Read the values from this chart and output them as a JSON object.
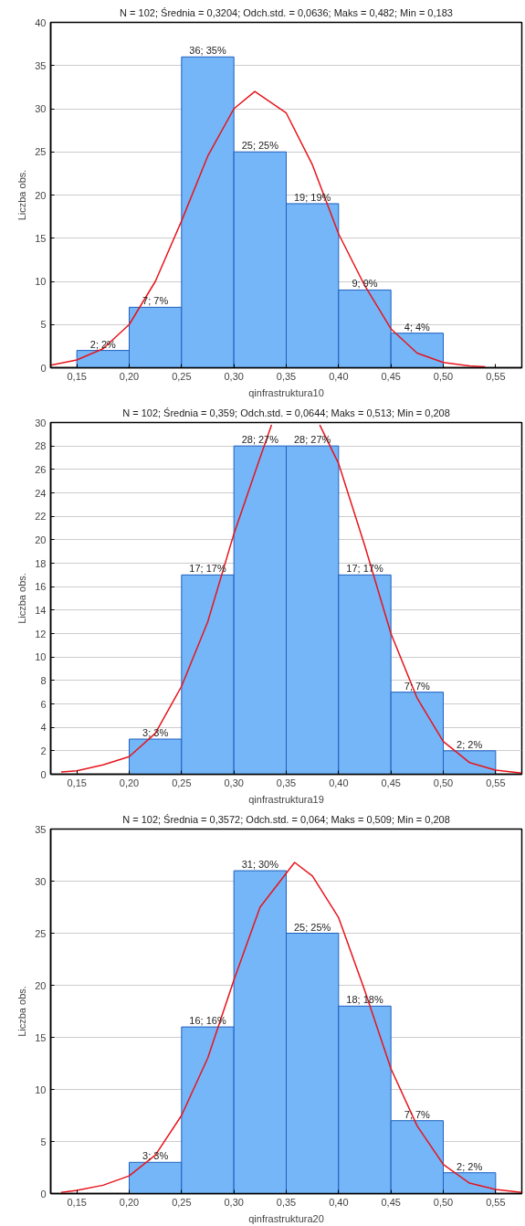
{
  "chart_data": [
    {
      "type": "histogram",
      "title": "N = 102; Średnia = 0,3204; Odch.std. = 0,0636; Maks = 0,482; Min = 0,183",
      "xlabel": "qinfrastruktura10",
      "ylabel": "Liczba obs.",
      "bins": [
        0.15,
        0.2,
        0.25,
        0.3,
        0.35,
        0.4,
        0.45,
        0.5
      ],
      "values": [
        2,
        7,
        36,
        25,
        19,
        9,
        4
      ],
      "value_labels": [
        "2; 2%",
        "7; 7%",
        "36; 35%",
        "25; 25%",
        "19; 19%",
        "9; 9%",
        "4; 4%"
      ],
      "color": "#74b6f7",
      "xlim": [
        0.125,
        0.575
      ],
      "xticks": [
        {
          "value": 0.15,
          "label": "0,15"
        },
        {
          "value": 0.2,
          "label": "0,20"
        },
        {
          "value": 0.25,
          "label": "0,25"
        },
        {
          "value": 0.3,
          "label": "0,30"
        },
        {
          "value": 0.35,
          "label": "0,35"
        },
        {
          "value": 0.4,
          "label": "0,40"
        },
        {
          "value": 0.45,
          "label": "0,45"
        },
        {
          "value": 0.5,
          "label": "0,50"
        },
        {
          "value": 0.55,
          "label": "0,55"
        }
      ],
      "ylim": [
        0,
        40
      ],
      "yticks": [
        0,
        5,
        10,
        15,
        20,
        25,
        30,
        35,
        40
      ],
      "grid": "y",
      "series": [
        {
          "type": "line",
          "color": "#e8141c",
          "x": [
            0.125,
            0.15,
            0.175,
            0.2,
            0.225,
            0.25,
            0.275,
            0.3,
            0.32,
            0.35,
            0.375,
            0.4,
            0.425,
            0.45,
            0.475,
            0.5,
            0.525,
            0.54
          ],
          "values": [
            0.3,
            0.9,
            2.2,
            5,
            10,
            17,
            24.5,
            30,
            32,
            29.5,
            23.5,
            15.5,
            9.5,
            4.5,
            1.7,
            0.6,
            0.2,
            0.1
          ]
        }
      ]
    },
    {
      "type": "histogram",
      "title": "N = 102; Średnia = 0,359; Odch.std. = 0,0644; Maks = 0,513; Min = 0,208",
      "xlabel": "qinfrastruktura19",
      "ylabel": "Liczba obs.",
      "bins": [
        0.2,
        0.25,
        0.3,
        0.35,
        0.4,
        0.45,
        0.5,
        0.55
      ],
      "values": [
        3,
        17,
        28,
        28,
        17,
        7,
        2
      ],
      "value_labels": [
        "3; 3%",
        "17; 17%",
        "28; 27%",
        "28; 27%",
        "17; 17%",
        "7; 7%",
        "2; 2%"
      ],
      "color": "#74b6f7",
      "xlim": [
        0.125,
        0.575
      ],
      "xticks": [
        {
          "value": 0.15,
          "label": "0,15"
        },
        {
          "value": 0.2,
          "label": "0,20"
        },
        {
          "value": 0.25,
          "label": "0,25"
        },
        {
          "value": 0.3,
          "label": "0,30"
        },
        {
          "value": 0.35,
          "label": "0,35"
        },
        {
          "value": 0.4,
          "label": "0,40"
        },
        {
          "value": 0.45,
          "label": "0,45"
        },
        {
          "value": 0.5,
          "label": "0,50"
        },
        {
          "value": 0.55,
          "label": "0,55"
        }
      ],
      "ylim": [
        0,
        30
      ],
      "yticks": [
        0,
        2,
        4,
        6,
        8,
        10,
        12,
        14,
        16,
        18,
        20,
        22,
        24,
        26,
        28,
        30
      ],
      "grid": "y",
      "series": [
        {
          "type": "line",
          "color": "#e8141c",
          "x": [
            0.135,
            0.15,
            0.175,
            0.2,
            0.225,
            0.25,
            0.275,
            0.3,
            0.325,
            0.336,
            0.36,
            0.382,
            0.4,
            0.425,
            0.45,
            0.475,
            0.5,
            0.525,
            0.55,
            0.575
          ],
          "values": [
            0.2,
            0.3,
            0.8,
            1.5,
            3.5,
            7.5,
            13,
            20.5,
            27,
            29.8,
            null,
            29.8,
            26.5,
            19.5,
            12,
            6.5,
            2.8,
            1,
            0.35,
            0.1
          ]
        }
      ]
    },
    {
      "type": "histogram",
      "title": "N = 102; Średnia = 0,3572; Odch.std. = 0,064; Maks = 0,509; Min = 0,208",
      "xlabel": "qinfrastruktura20",
      "ylabel": "Liczba obs.",
      "bins": [
        0.2,
        0.25,
        0.3,
        0.35,
        0.4,
        0.45,
        0.5,
        0.55
      ],
      "values": [
        3,
        16,
        31,
        25,
        18,
        7,
        2
      ],
      "value_labels": [
        "3; 3%",
        "16; 16%",
        "31; 30%",
        "25; 25%",
        "18; 18%",
        "7; 7%",
        "2; 2%"
      ],
      "color": "#74b6f7",
      "xlim": [
        0.125,
        0.575
      ],
      "xticks": [
        {
          "value": 0.15,
          "label": "0,15"
        },
        {
          "value": 0.2,
          "label": "0,20"
        },
        {
          "value": 0.25,
          "label": "0,25"
        },
        {
          "value": 0.3,
          "label": "0,30"
        },
        {
          "value": 0.35,
          "label": "0,35"
        },
        {
          "value": 0.4,
          "label": "0,40"
        },
        {
          "value": 0.45,
          "label": "0,45"
        },
        {
          "value": 0.5,
          "label": "0,50"
        },
        {
          "value": 0.55,
          "label": "0,55"
        }
      ],
      "ylim": [
        0,
        35
      ],
      "yticks": [
        0,
        5,
        10,
        15,
        20,
        25,
        30,
        35
      ],
      "grid": "y",
      "series": [
        {
          "type": "line",
          "color": "#e8141c",
          "x": [
            0.135,
            0.15,
            0.175,
            0.2,
            0.225,
            0.25,
            0.275,
            0.3,
            0.325,
            0.358,
            0.375,
            0.4,
            0.425,
            0.45,
            0.475,
            0.5,
            0.525,
            0.55,
            0.575
          ],
          "values": [
            0.1,
            0.3,
            0.8,
            1.7,
            3.7,
            7.5,
            13,
            20.5,
            27.5,
            31.8,
            30.5,
            26.5,
            19.5,
            12,
            6.5,
            2.8,
            1,
            0.4,
            0.1
          ]
        }
      ]
    }
  ]
}
